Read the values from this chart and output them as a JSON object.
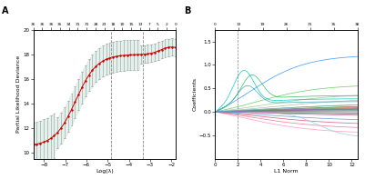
{
  "panel_A": {
    "title": "A",
    "top_labels": [
      36,
      36,
      36,
      35,
      34,
      31,
      31,
      28,
      23,
      18,
      10,
      15,
      13,
      7,
      5,
      2,
      0
    ],
    "xlabel": "Log(λ)",
    "ylabel": "Partial Likelihood Deviance",
    "xlim": [
      -8.5,
      -1.8
    ],
    "ylim": [
      9.5,
      20
    ],
    "yticks": [
      10,
      12,
      14,
      16,
      18,
      20
    ],
    "xticks": [
      -8,
      -7,
      -6,
      -5,
      -4,
      -3,
      -2
    ],
    "vline1": -4.85,
    "vline2": -3.35,
    "dot_color": "#cc0000",
    "ci_color": "#aaaaaa",
    "band_color": "#ddeee8"
  },
  "panel_B": {
    "title": "B",
    "top_labels": [
      0,
      13,
      19,
      26,
      31,
      35,
      38
    ],
    "xlabel": "L1 Norm",
    "ylabel": "Coefficients",
    "xlim": [
      0,
      12.5
    ],
    "ylim": [
      -1.0,
      1.75
    ],
    "yticks": [
      -0.5,
      0.0,
      0.5,
      1.0,
      1.5
    ],
    "xticks": [
      0,
      2,
      4,
      6,
      8,
      10,
      12
    ],
    "vline": 2.0
  }
}
